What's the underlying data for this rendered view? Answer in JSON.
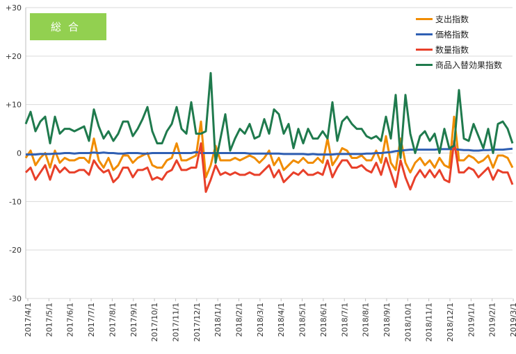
{
  "chart_data": {
    "type": "line",
    "badge": "総合",
    "badge_color": "#92d050",
    "ylim": [
      -30,
      30
    ],
    "y_ticks": [
      30,
      20,
      10,
      0,
      -10,
      -20,
      -30
    ],
    "y_tick_labels": [
      "+30",
      "+20",
      "+10",
      "0",
      "-10",
      "-20",
      "-30"
    ],
    "x_tick_labels": [
      "2017/4/1",
      "2017/5/1",
      "2017/6/1",
      "2017/7/1",
      "2017/8/1",
      "2017/9/1",
      "2017/10/1",
      "2017/11/1",
      "2017/12/1",
      "2018/1/1",
      "2018/2/1",
      "2018/3/1",
      "2018/4/1",
      "2018/5/1",
      "2018/6/1",
      "2018/7/1",
      "2018/8/1",
      "2018/9/1",
      "2018/10/1",
      "2018/11/1",
      "2018/12/1",
      "2019/1/1",
      "2019/2/1",
      "2019/3/1"
    ],
    "grid": "horizontal",
    "legend_position": "top-right",
    "series": [
      {
        "name": "支出指数",
        "color": "#f08c00",
        "values": [
          -1,
          0.5,
          -2.5,
          -1,
          0,
          -3,
          0.5,
          -2,
          -1,
          -1.5,
          -1.5,
          -1,
          -1,
          -2,
          3,
          -1.5,
          -3,
          -1,
          -3.5,
          -2.5,
          -0.5,
          -0.5,
          -2,
          -1,
          -0.5,
          0,
          -2.5,
          -3,
          -3,
          -1.5,
          -1,
          2,
          -1.5,
          -1.5,
          -1,
          -0.5,
          6.5,
          -5,
          -2.5,
          1.5,
          -1.5,
          -1.5,
          -1.5,
          -1,
          -1.5,
          -1,
          -0.5,
          -1,
          -2,
          -1,
          0.5,
          -2.5,
          -1,
          -3.5,
          -2.5,
          -1.5,
          -2,
          -1,
          -2,
          -2,
          -1,
          -2,
          3,
          -2.5,
          -1,
          1,
          0.5,
          -1,
          -1,
          -0.5,
          -1.5,
          -1.5,
          0.5,
          -2,
          3.5,
          -2,
          -3.5,
          3,
          -2,
          -4,
          -2,
          -1,
          -2.5,
          -1.5,
          -3,
          -1,
          -2.5,
          -3,
          7.5,
          -1.5,
          -1.5,
          -0.5,
          -1,
          -2,
          -1.5,
          -0.5,
          -3,
          -0.5,
          -0.5,
          -1,
          -3
        ]
      },
      {
        "name": "価格指数",
        "color": "#2f5fb3",
        "values": [
          -0.3,
          -0.3,
          -0.3,
          -0.2,
          -0.2,
          -0.2,
          -0.1,
          -0.1,
          0,
          0,
          -0.1,
          0,
          0,
          0,
          0.1,
          0,
          0.1,
          0,
          0,
          -0.1,
          -0.1,
          0,
          0,
          0,
          -0.1,
          -0.1,
          0,
          0,
          0,
          0,
          0,
          0,
          0,
          0,
          0,
          0.2,
          0,
          0,
          0,
          0,
          0,
          0,
          0,
          0,
          0,
          0,
          -0.1,
          -0.1,
          -0.1,
          -0.1,
          -0.1,
          -0.1,
          -0.1,
          -0.2,
          -0.2,
          -0.2,
          -0.2,
          -0.2,
          -0.3,
          -0.2,
          -0.3,
          -0.3,
          -0.3,
          -0.3,
          -0.2,
          -0.2,
          -0.2,
          -0.2,
          -0.2,
          -0.2,
          -0.1,
          -0.1,
          0,
          0,
          0.1,
          0.2,
          0.4,
          0.5,
          0.6,
          0.7,
          0.7,
          0.7,
          0.7,
          0.7,
          0.7,
          0.8,
          0.8,
          0.8,
          0.8,
          0.7,
          0.6,
          0.6,
          0.5,
          0.5,
          0.6,
          0.6,
          0.7,
          0.7,
          0.7,
          0.8,
          0.9
        ]
      },
      {
        "name": "数量指数",
        "color": "#e8402a",
        "values": [
          -4,
          -3,
          -5.5,
          -4,
          -2.5,
          -5.5,
          -2.5,
          -4,
          -3,
          -4,
          -4,
          -3.5,
          -3.5,
          -4.5,
          -1.5,
          -3,
          -4,
          -3.5,
          -6,
          -5,
          -3,
          -3,
          -5,
          -3.5,
          -3.5,
          -3,
          -5.5,
          -5,
          -5.5,
          -4,
          -3.5,
          -1.5,
          -3.5,
          -3.5,
          -3,
          -3,
          2,
          -8,
          -5.5,
          -2.5,
          -4.5,
          -4,
          -4.5,
          -4,
          -4.5,
          -4.5,
          -4,
          -4.5,
          -4.5,
          -3.5,
          -2.5,
          -5,
          -3.5,
          -6,
          -5,
          -4,
          -4.5,
          -3.5,
          -4.5,
          -4.5,
          -4,
          -4.5,
          -1.5,
          -5,
          -3,
          -1.5,
          -1.5,
          -3,
          -3,
          -2.5,
          -3.5,
          -4,
          -2,
          -4.5,
          -1,
          -4,
          -7,
          -1.5,
          -5,
          -7.5,
          -5,
          -3.5,
          -5,
          -3.5,
          -5,
          -3.5,
          -5.5,
          -6,
          2.5,
          -4,
          -4,
          -3,
          -3.5,
          -5,
          -4,
          -3,
          -5.5,
          -3.5,
          -4,
          -4,
          -6.5
        ]
      },
      {
        "name": "商品入替効果指数",
        "color": "#1f7a4d",
        "values": [
          6,
          8.5,
          4.5,
          6.5,
          7.5,
          2,
          7.5,
          4,
          5,
          5,
          4.5,
          5,
          5.5,
          2.5,
          9,
          5.5,
          3,
          4.5,
          2.5,
          4,
          6.5,
          6.5,
          3.5,
          5,
          7,
          9.5,
          4.5,
          2,
          2,
          4.5,
          6,
          9.5,
          5,
          4,
          10.5,
          4,
          4,
          4.5,
          16.5,
          -2,
          3,
          8,
          0.5,
          3,
          5,
          4,
          6,
          3,
          3.5,
          7,
          4,
          9,
          8,
          4,
          6,
          1,
          5,
          2,
          5,
          3,
          3,
          4.5,
          3,
          10.5,
          2.5,
          6.5,
          7.5,
          6,
          5,
          5,
          3.5,
          3,
          3.5,
          2.5,
          7.5,
          3,
          12,
          -1,
          12,
          4,
          0,
          3.5,
          4.5,
          2.5,
          4,
          0,
          5,
          1,
          1.5,
          13,
          3,
          2.5,
          6,
          3.5,
          1,
          5,
          0,
          6,
          6.5,
          5,
          2
        ]
      }
    ]
  }
}
